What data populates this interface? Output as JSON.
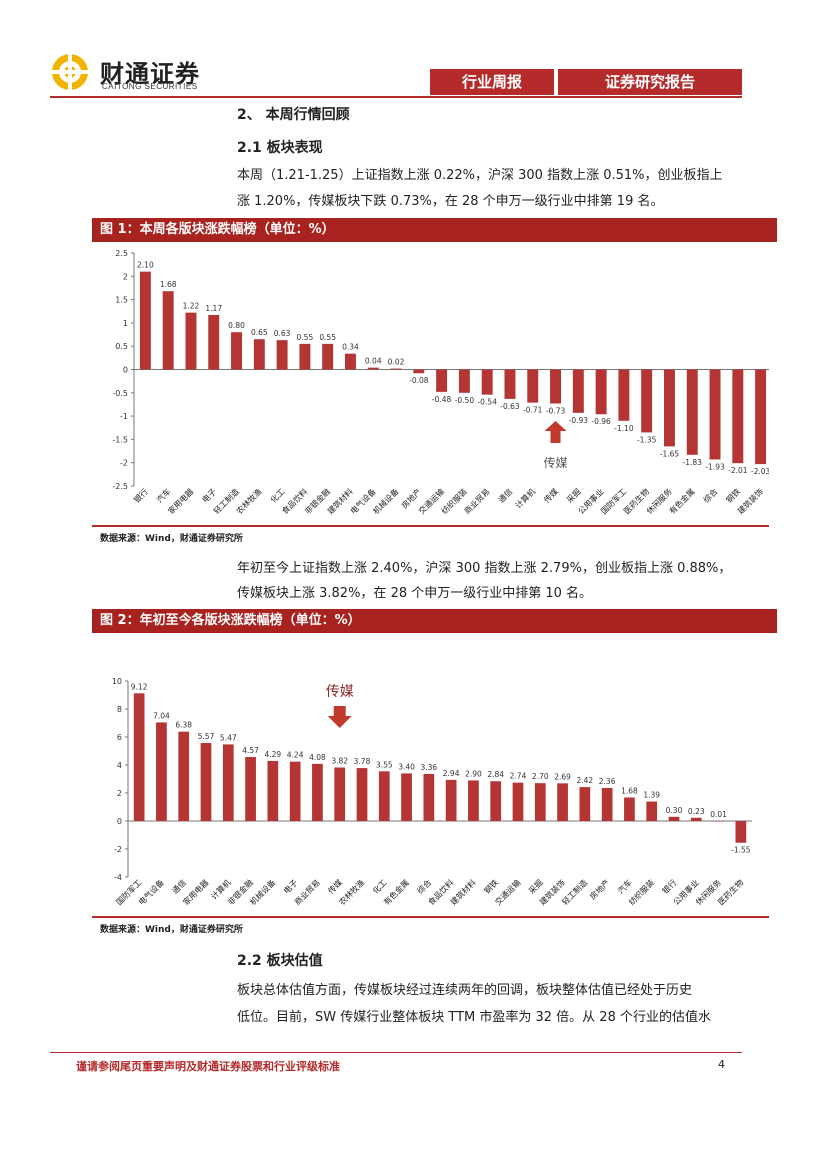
{
  "header": {
    "logo_name": "财通证券",
    "logo_sub": "CAITONG SECURITIES",
    "tag_weekly": "行业周报",
    "tag_report": "证券研究报告"
  },
  "section2": {
    "title": "2、 本周行情回顾",
    "sub1": "2.1  板块表现",
    "para1_line1": "本周（1.21-1.25）上证指数上涨 0.22%，沪深 300 指数上涨 0.51%，创业板指上",
    "para1_line2": "涨 1.20%，传媒板块下跌 0.73%，在 28 个申万一级行业中排第 19 名。",
    "para2_line1": "年初至今上证指数上涨 2.40%，沪深 300 指数上涨 2.79%，创业板指上涨 0.88%，",
    "para2_line2": "传媒板块上涨 3.82%，在 28 个申万一级行业中排第 10 名。",
    "sub2": "2.2  板块估值",
    "para3_line1": "板块总体估值方面，传媒板块经过连续两年的回调，板块整体估值已经处于历史",
    "para3_line2": "低位。目前，SW 传媒行业整体板块 TTM 市盈率为 32 倍。从 28 个行业的估值水"
  },
  "fig1": {
    "title": "图 1：本周各版块涨跌幅榜（单位：%）",
    "source": "数据来源：Wind，财通证券研究所",
    "annotation": "传媒"
  },
  "fig2": {
    "title": "图 2：年初至今各版块涨跌幅榜（单位：%）",
    "source": "数据来源：Wind，财通证券研究所",
    "annotation": "传媒"
  },
  "chart_data": [
    {
      "type": "bar",
      "title": "本周各版块涨跌幅榜（单位：%）",
      "categories": [
        "银行",
        "汽车",
        "家用电器",
        "电子",
        "轻工制造",
        "农林牧渔",
        "化工",
        "食品饮料",
        "非银金融",
        "建筑材料",
        "电气设备",
        "机械设备",
        "房地产",
        "交通运输",
        "纺织服装",
        "商业贸易",
        "通信",
        "计算机",
        "传媒",
        "采掘",
        "公用事业",
        "国防军工",
        "医药生物",
        "休闲服务",
        "有色金属",
        "综合",
        "钢铁",
        "建筑装饰"
      ],
      "values": [
        2.1,
        1.68,
        1.22,
        1.17,
        0.8,
        0.65,
        0.63,
        0.55,
        0.55,
        0.34,
        0.04,
        0.02,
        -0.08,
        -0.48,
        -0.5,
        -0.54,
        -0.63,
        -0.71,
        -0.73,
        -0.93,
        -0.96,
        -1.1,
        -1.35,
        -1.65,
        -1.83,
        -1.93,
        -2.01,
        -2.03
      ],
      "labels": [
        "2.10",
        "1.68",
        "1.22",
        "1.17",
        "0.80",
        "0.65",
        "0.63",
        "0.55",
        "0.55",
        "0.34",
        "0.04",
        "0.02",
        "-0.08",
        "-0.48",
        "-0.50",
        "-0.54",
        "-0.63",
        "-0.71",
        "-0.73",
        "-0.93",
        "-0.96",
        "-1.10",
        "-1.35",
        "-1.65",
        "-1.83",
        "-1.93",
        "-2.01",
        "-2.03"
      ],
      "ylim": [
        -2.5,
        2.5
      ],
      "yticks": [
        "2.5",
        "2",
        "1.5",
        "1",
        "0.5",
        "0",
        "-0.5",
        "-1",
        "-1.5",
        "-2",
        "-2.5"
      ],
      "ytick_values": [
        2.5,
        2,
        1.5,
        1,
        0.5,
        0,
        -0.5,
        -1,
        -1.5,
        -2,
        -2.5
      ],
      "highlight": "传媒",
      "color": "#b53434"
    },
    {
      "type": "bar",
      "title": "年初至今各版块涨跌幅榜（单位：%）",
      "categories": [
        "国防军工",
        "电气设备",
        "通信",
        "家用电器",
        "计算机",
        "非银金融",
        "机械设备",
        "电子",
        "商业贸易",
        "传媒",
        "农林牧渔",
        "化工",
        "有色金属",
        "综合",
        "食品饮料",
        "建筑材料",
        "钢铁",
        "交通运输",
        "采掘",
        "建筑装饰",
        "轻工制造",
        "房地产",
        "汽车",
        "纺织服装",
        "银行",
        "公用事业",
        "休闲服务",
        "医药生物"
      ],
      "values": [
        9.12,
        7.04,
        6.38,
        5.57,
        5.47,
        4.57,
        4.29,
        4.24,
        4.08,
        3.82,
        3.78,
        3.55,
        3.4,
        3.36,
        2.94,
        2.9,
        2.84,
        2.74,
        2.7,
        2.69,
        2.42,
        2.36,
        1.68,
        1.39,
        0.3,
        0.23,
        0.01,
        -1.55
      ],
      "labels": [
        "9.12",
        "7.04",
        "6.38",
        "5.57",
        "5.47",
        "4.57",
        "4.29",
        "4.24",
        "4.08",
        "3.82",
        "3.78",
        "3.55",
        "3.40",
        "3.36",
        "2.94",
        "2.90",
        "2.84",
        "2.74",
        "2.70",
        "2.69",
        "2.42",
        "2.36",
        "1.68",
        "1.39",
        "0.30",
        "0.23",
        "0.01",
        "-1.55"
      ],
      "ylim": [
        -4,
        10
      ],
      "yticks": [
        "10",
        "8",
        "6",
        "4",
        "2",
        "0",
        "-2",
        "-4"
      ],
      "ytick_values": [
        10,
        8,
        6,
        4,
        2,
        0,
        -2,
        -4
      ],
      "highlight": "传媒",
      "color": "#b53434"
    }
  ],
  "footer": {
    "disclaimer": "谨请参阅尾页重要声明及财通证券股票和行业评级标准",
    "page": "4"
  }
}
